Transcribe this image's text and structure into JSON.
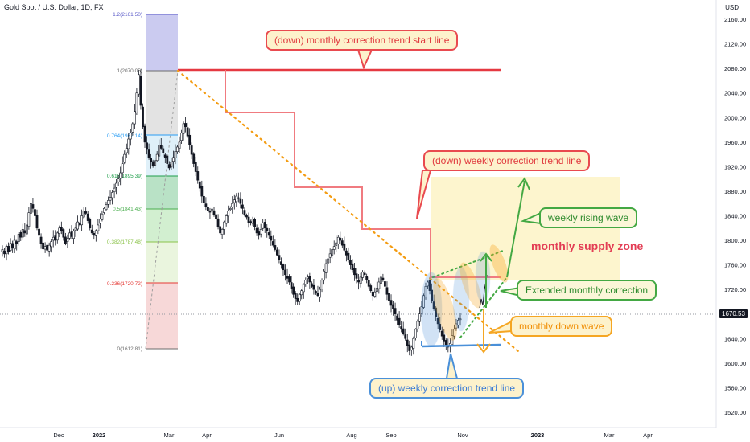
{
  "chart_title": "Gold Spot / U.S. Dollar, 1D, FX",
  "currency": "USD",
  "last_price": "1670.53",
  "chart_data": {
    "type": "candlestick",
    "title": "Gold Spot / U.S. Dollar, 1D, FX",
    "y_unit": "USD",
    "ylim": [
      1495,
      2185
    ],
    "y_ticks": [
      "2160.00",
      "2120.00",
      "2080.00",
      "2040.00",
      "2000.00",
      "1960.00",
      "1920.00",
      "1880.00",
      "1840.00",
      "1800.00",
      "1760.00",
      "1720.00",
      "1680.00",
      "1640.00",
      "1600.00",
      "1560.00",
      "1520.00"
    ],
    "x_ticks": [
      "Dec",
      "2022",
      "Mar",
      "Apr",
      "Jun",
      "Aug",
      "Sep",
      "Nov",
      "2023",
      "Mar",
      "Apr"
    ],
    "price_series": [
      1785,
      1778,
      1790,
      1782,
      1795,
      1788,
      1800,
      1795,
      1810,
      1805,
      1818,
      1812,
      1825,
      1845,
      1860,
      1852,
      1840,
      1820,
      1808,
      1795,
      1786,
      1790,
      1784,
      1792,
      1798,
      1805,
      1800,
      1812,
      1820,
      1815,
      1805,
      1795,
      1803,
      1812,
      1806,
      1815,
      1820,
      1830,
      1825,
      1840,
      1848,
      1844,
      1832,
      1820,
      1812,
      1808,
      1816,
      1825,
      1835,
      1843,
      1852,
      1858,
      1865,
      1870,
      1878,
      1885,
      1893,
      1900,
      1910,
      1925,
      1940,
      1950,
      1965,
      1975,
      1990,
      2010,
      2040,
      2070,
      2020,
      1985,
      1960,
      1948,
      1935,
      1928,
      1922,
      1930,
      1940,
      1955,
      1950,
      1942,
      1935,
      1925,
      1918,
      1928,
      1935,
      1945,
      1952,
      1960,
      1975,
      1990,
      1985,
      1970,
      1955,
      1940,
      1925,
      1912,
      1898,
      1885,
      1872,
      1862,
      1855,
      1848,
      1846,
      1851,
      1842,
      1835,
      1822,
      1812,
      1818,
      1830,
      1840,
      1848,
      1852,
      1860,
      1866,
      1872,
      1868,
      1860,
      1852,
      1842,
      1838,
      1828,
      1830,
      1835,
      1822,
      1812,
      1808,
      1818,
      1828,
      1820,
      1815,
      1808,
      1800,
      1792,
      1785,
      1776,
      1768,
      1760,
      1752,
      1744,
      1738,
      1732,
      1722,
      1712,
      1705,
      1700,
      1712,
      1718,
      1728,
      1735,
      1740,
      1732,
      1725,
      1720,
      1715,
      1710,
      1720,
      1735,
      1750,
      1762,
      1770,
      1778,
      1785,
      1790,
      1796,
      1805,
      1800,
      1792,
      1784,
      1776,
      1768,
      1760,
      1752,
      1744,
      1738,
      1732,
      1740,
      1748,
      1744,
      1735,
      1725,
      1718,
      1710,
      1716,
      1722,
      1732,
      1740,
      1735,
      1725,
      1712,
      1702,
      1694,
      1688,
      1680,
      1670,
      1662,
      1655,
      1648,
      1640,
      1628,
      1620,
      1626,
      1640,
      1655,
      1668,
      1680,
      1692,
      1710,
      1725,
      1732,
      1718,
      1702,
      1688,
      1675,
      1664,
      1654,
      1644,
      1636,
      1630,
      1626,
      1632,
      1645,
      1655,
      1664,
      1670,
      1672
    ]
  },
  "fib": [
    {
      "label": "1.2(2161.50)",
      "color": "#5a5ac8"
    },
    {
      "label": "1(2070.05)",
      "color": "#6b6b6b"
    },
    {
      "label": "0.764(1962.14)",
      "color": "#2a9df4"
    },
    {
      "label": "0.618(1895.39)",
      "color": "#1f9e4a"
    },
    {
      "label": "0.5(1841.43)",
      "color": "#4caf50"
    },
    {
      "label": "0.382(1787.48)",
      "color": "#8bc34a"
    },
    {
      "label": "0.236(1720.72)",
      "color": "#e53935"
    },
    {
      "label": "0(1612.81)",
      "color": "#6b6b6b"
    }
  ],
  "annotations": {
    "monthly_start": "(down) monthly correction trend start line",
    "weekly_down": "(down) weekly correction trend line",
    "weekly_rising": "weekly rising wave",
    "supply_zone": "monthly supply zone",
    "extended_correction": "Extended monthly correction",
    "monthly_down_wave": "monthly down wave",
    "weekly_up": "(up) weekly correction trend line"
  },
  "colors": {
    "up_candle": "#131722",
    "down_candle": "#131722",
    "red_line": "#e53941",
    "step_line": "#f07b80",
    "orange_dots": "#f39c12",
    "green": "#43a843",
    "blue": "#4a90d9",
    "supply_zone": "#fdf3c5"
  }
}
